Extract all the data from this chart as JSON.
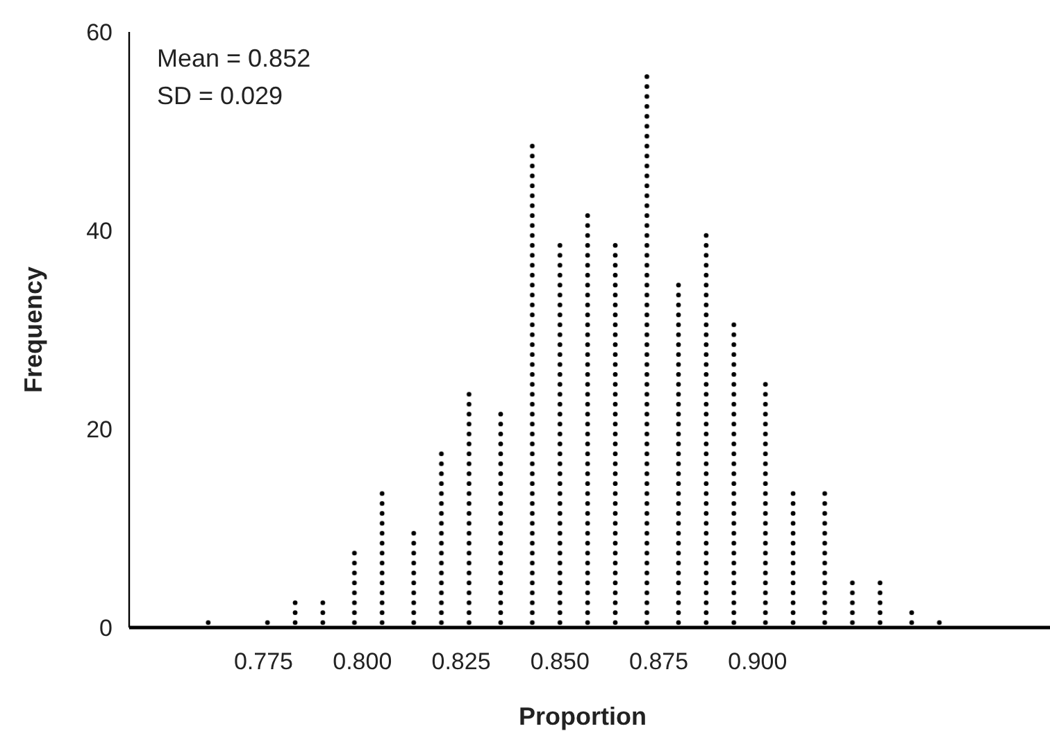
{
  "chart_data": {
    "type": "bar",
    "xlabel": "Proportion",
    "ylabel": "Frequency",
    "annotations": [
      "Mean = 0.852",
      "SD = 0.029"
    ],
    "x": [
      0.761,
      0.776,
      0.783,
      0.79,
      0.798,
      0.805,
      0.813,
      0.82,
      0.827,
      0.835,
      0.843,
      0.85,
      0.857,
      0.864,
      0.872,
      0.88,
      0.887,
      0.894,
      0.902,
      0.909,
      0.917,
      0.924,
      0.931,
      0.939,
      0.946
    ],
    "values": [
      1,
      1,
      3,
      3,
      8,
      14,
      10,
      18,
      24,
      22,
      49,
      39,
      42,
      39,
      56,
      35,
      40,
      31,
      25,
      14,
      14,
      5,
      5,
      2,
      1
    ],
    "color": "#000000",
    "xlim": [
      0.741,
      0.974
    ],
    "xticks": [
      0.775,
      {
        "value": 0.8,
        "label": "0.800"
      },
      0.825,
      {
        "value": 0.85,
        "label": "0.850"
      },
      0.875,
      {
        "value": 0.9,
        "label": "0.900"
      }
    ],
    "ylim": [
      0,
      60
    ],
    "yticks": [
      0,
      20,
      40,
      60
    ],
    "grid": false
  }
}
